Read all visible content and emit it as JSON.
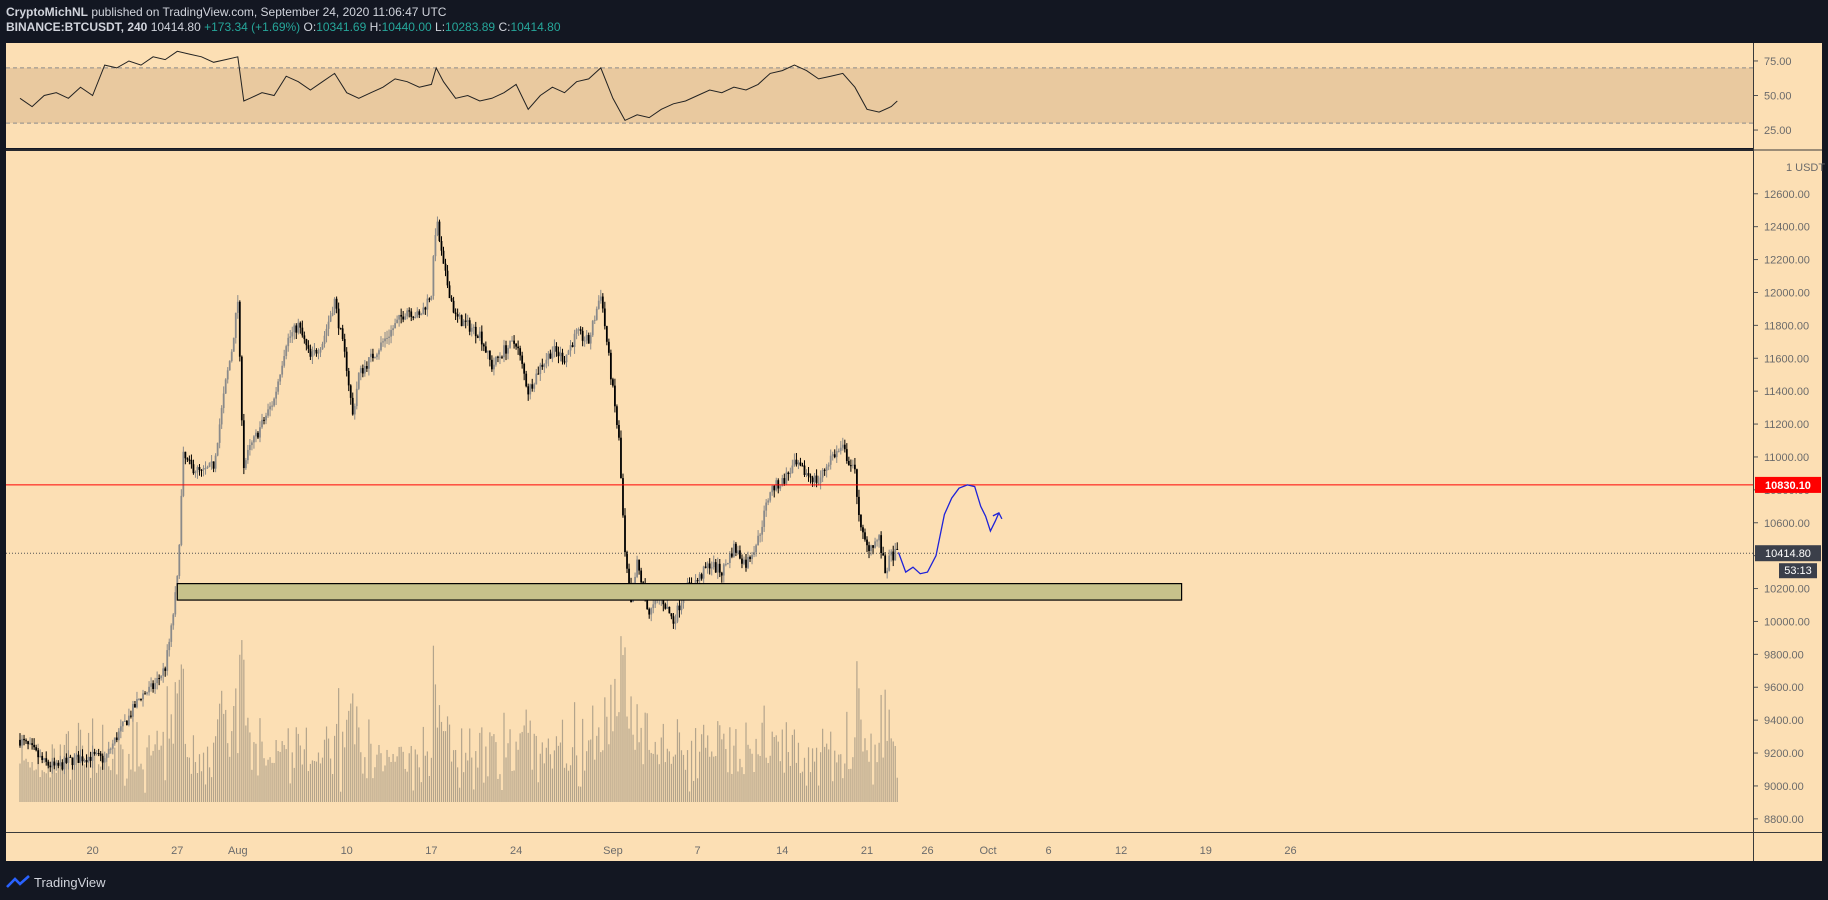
{
  "header": {
    "line1_author": "CryptoMichNL",
    "line1_rest": " published on TradingView.com, September 24, 2020 11:06:47 UTC",
    "ticker": "BINANCE:BTCUSDT, 240",
    "last": "10414.80",
    "change": "+173.34 (+1.69%)",
    "o_label": "O:",
    "o": "10341.69",
    "h_label": "H:",
    "h": "10440.00",
    "l_label": "L:",
    "l": "10283.89",
    "c_label": "C:",
    "c": "10414.80"
  },
  "footer": {
    "brand": "TradingView"
  },
  "colors": {
    "background": "#fcdfb4",
    "rsi_band": "#e9c99f",
    "support_zone": "#c7c28b",
    "resistance": "#ff0000",
    "projection": "#1e22d9",
    "frame": "#131722",
    "axis_text": "#6b6b6b"
  },
  "chart_data": {
    "type": "candlestick",
    "symbol": "BINANCE:BTCUSDT",
    "interval": "240",
    "currency_label": "USDT",
    "price_ticks": [
      "12600.00",
      "12400.00",
      "12200.00",
      "12000.00",
      "11800.00",
      "11600.00",
      "11400.00",
      "11200.00",
      "11000.00",
      "10800.00",
      "10600.00",
      "10400.00",
      "10200.00",
      "10000.00",
      "9800.00",
      "9600.00",
      "9400.00",
      "9200.00",
      "9000.00",
      "8800.00"
    ],
    "price_tick_values": [
      12600,
      12400,
      12200,
      12000,
      11800,
      11600,
      11400,
      11200,
      11000,
      10800,
      10600,
      10400,
      10200,
      10000,
      9800,
      9600,
      9400,
      9200,
      9000,
      8800
    ],
    "ylim": [
      8720,
      12860
    ],
    "rsi_ticks": [
      "75.00",
      "50.00",
      "25.00"
    ],
    "rsi_tick_values": [
      75,
      50,
      25
    ],
    "rsi_band": [
      30,
      70
    ],
    "x_ticks": [
      "20",
      "27",
      "Aug",
      "10",
      "17",
      "24",
      "Sep",
      "7",
      "14",
      "21",
      "26",
      "Oct",
      "6",
      "12",
      "19",
      "26"
    ],
    "x_tick_days": [
      6,
      13,
      18,
      27,
      34,
      41,
      49,
      56,
      63,
      70,
      75,
      80,
      85,
      91,
      98,
      105
    ],
    "x_start_date": "2020-07-14",
    "resistance_price": 10830.1,
    "resistance_label": "10830.10",
    "last_price_label": "10414.80",
    "last_price": 10414.8,
    "countdown": "53:13",
    "support_zone": {
      "low": 10130,
      "high": 10230,
      "from_day": 13,
      "to_day": 96
    },
    "price_path": [
      [
        0,
        9280
      ],
      [
        1,
        9220
      ],
      [
        2,
        9140
      ],
      [
        3,
        9110
      ],
      [
        4,
        9150
      ],
      [
        5,
        9170
      ],
      [
        6,
        9180
      ],
      [
        7,
        9160
      ],
      [
        8,
        9300
      ],
      [
        9,
        9420
      ],
      [
        10,
        9550
      ],
      [
        11,
        9600
      ],
      [
        12,
        9720
      ],
      [
        12.5,
        9950
      ],
      [
        13,
        10250
      ],
      [
        13.3,
        10700
      ],
      [
        13.5,
        11000
      ],
      [
        14,
        10950
      ],
      [
        15,
        10900
      ],
      [
        16,
        10950
      ],
      [
        16.5,
        11200
      ],
      [
        17,
        11450
      ],
      [
        17.5,
        11650
      ],
      [
        18,
        11950
      ],
      [
        18.2,
        11500
      ],
      [
        18.5,
        10950
      ],
      [
        19,
        11050
      ],
      [
        20,
        11200
      ],
      [
        21,
        11350
      ],
      [
        22,
        11700
      ],
      [
        23,
        11800
      ],
      [
        24,
        11600
      ],
      [
        25,
        11700
      ],
      [
        26,
        11950
      ],
      [
        27,
        11550
      ],
      [
        27.5,
        11250
      ],
      [
        28,
        11500
      ],
      [
        29,
        11600
      ],
      [
        30,
        11700
      ],
      [
        31,
        11800
      ],
      [
        32,
        11900
      ],
      [
        33,
        11850
      ],
      [
        34,
        12000
      ],
      [
        34.4,
        12450
      ],
      [
        35,
        12150
      ],
      [
        36,
        11850
      ],
      [
        37,
        11800
      ],
      [
        38,
        11750
      ],
      [
        39,
        11550
      ],
      [
        40,
        11650
      ],
      [
        41,
        11700
      ],
      [
        42,
        11400
      ],
      [
        43,
        11550
      ],
      [
        44,
        11650
      ],
      [
        45,
        11600
      ],
      [
        46,
        11750
      ],
      [
        47,
        11700
      ],
      [
        48,
        12000
      ],
      [
        48.5,
        11700
      ],
      [
        49,
        11400
      ],
      [
        49.5,
        11100
      ],
      [
        50,
        10400
      ],
      [
        50.5,
        10100
      ],
      [
        51,
        10350
      ],
      [
        52,
        10050
      ],
      [
        53,
        10150
      ],
      [
        54,
        10000
      ],
      [
        55,
        10200
      ],
      [
        56,
        10250
      ],
      [
        57,
        10350
      ],
      [
        58,
        10300
      ],
      [
        59,
        10450
      ],
      [
        60,
        10350
      ],
      [
        61,
        10500
      ],
      [
        62,
        10800
      ],
      [
        63,
        10850
      ],
      [
        64,
        10950
      ],
      [
        65,
        10900
      ],
      [
        66,
        10850
      ],
      [
        67,
        11000
      ],
      [
        68,
        11050
      ],
      [
        69,
        10900
      ],
      [
        69.5,
        10550
      ],
      [
        70,
        10450
      ],
      [
        71,
        10500
      ],
      [
        71.5,
        10300
      ],
      [
        72,
        10400
      ],
      [
        72.5,
        10414
      ]
    ],
    "rsi_path": [
      [
        0,
        48
      ],
      [
        1,
        42
      ],
      [
        2,
        50
      ],
      [
        3,
        52
      ],
      [
        4,
        48
      ],
      [
        5,
        56
      ],
      [
        6,
        50
      ],
      [
        7,
        72
      ],
      [
        8,
        70
      ],
      [
        9,
        75
      ],
      [
        10,
        72
      ],
      [
        11,
        78
      ],
      [
        12,
        76
      ],
      [
        13,
        82
      ],
      [
        14,
        80
      ],
      [
        15,
        78
      ],
      [
        16,
        74
      ],
      [
        17,
        76
      ],
      [
        18,
        78
      ],
      [
        18.5,
        46
      ],
      [
        19,
        48
      ],
      [
        20,
        52
      ],
      [
        21,
        50
      ],
      [
        22,
        64
      ],
      [
        23,
        60
      ],
      [
        24,
        54
      ],
      [
        25,
        60
      ],
      [
        26,
        66
      ],
      [
        27,
        52
      ],
      [
        28,
        48
      ],
      [
        29,
        52
      ],
      [
        30,
        56
      ],
      [
        31,
        62
      ],
      [
        32,
        60
      ],
      [
        33,
        56
      ],
      [
        34,
        58
      ],
      [
        34.4,
        70
      ],
      [
        35,
        60
      ],
      [
        36,
        48
      ],
      [
        37,
        50
      ],
      [
        38,
        46
      ],
      [
        39,
        48
      ],
      [
        40,
        52
      ],
      [
        41,
        58
      ],
      [
        42,
        40
      ],
      [
        43,
        50
      ],
      [
        44,
        56
      ],
      [
        45,
        52
      ],
      [
        46,
        60
      ],
      [
        47,
        62
      ],
      [
        48,
        70
      ],
      [
        49,
        48
      ],
      [
        50,
        32
      ],
      [
        51,
        36
      ],
      [
        52,
        34
      ],
      [
        53,
        40
      ],
      [
        54,
        44
      ],
      [
        55,
        46
      ],
      [
        56,
        50
      ],
      [
        57,
        54
      ],
      [
        58,
        52
      ],
      [
        59,
        56
      ],
      [
        60,
        54
      ],
      [
        61,
        58
      ],
      [
        62,
        66
      ],
      [
        63,
        68
      ],
      [
        64,
        72
      ],
      [
        65,
        68
      ],
      [
        66,
        62
      ],
      [
        67,
        64
      ],
      [
        68,
        66
      ],
      [
        69,
        56
      ],
      [
        70,
        40
      ],
      [
        71,
        38
      ],
      [
        72,
        42
      ],
      [
        72.5,
        46
      ]
    ],
    "projection_path": [
      [
        72.6,
        10420
      ],
      [
        73.2,
        10300
      ],
      [
        73.8,
        10330
      ],
      [
        74.4,
        10290
      ],
      [
        75.0,
        10300
      ],
      [
        75.7,
        10400
      ],
      [
        76.4,
        10650
      ],
      [
        77.0,
        10750
      ],
      [
        77.6,
        10810
      ],
      [
        78.3,
        10830
      ],
      [
        78.9,
        10820
      ],
      [
        79.4,
        10700
      ],
      [
        79.8,
        10640
      ],
      [
        80.2,
        10550
      ],
      [
        80.6,
        10610
      ],
      [
        80.9,
        10660
      ]
    ]
  }
}
